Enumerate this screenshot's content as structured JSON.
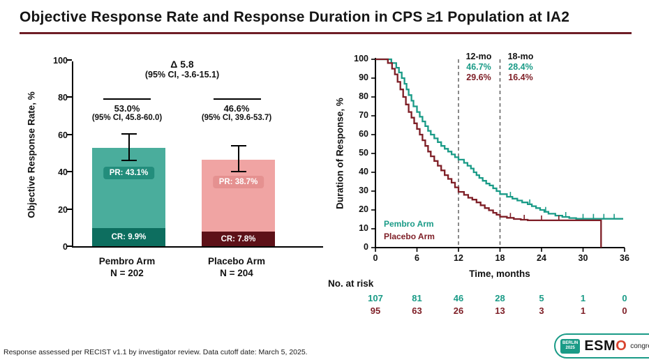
{
  "title": "Objective Response Rate and Response Duration in CPS ≥1 Population at IA2",
  "footer": "Response assessed per RECIST v1.1 by investigator review. Data cutoff date: March 5, 2025.",
  "colors": {
    "pembro": "#1a9b87",
    "pembro_bar": "#4aad9c",
    "pembro_cr": "#0d6e5f",
    "pembro_badge": "#238d7c",
    "placebo": "#7e1e26",
    "placebo_bar": "#f0a4a3",
    "placebo_cr": "#5d1118",
    "placebo_badge": "#e59190",
    "title_rule": "#6e1e26",
    "dash_line": "#4a4a4a"
  },
  "logo": {
    "badge_line1": "BERLIN",
    "badge_line2": "2025",
    "name_prefix": "ESM",
    "name_o": "O",
    "suffix": "congress"
  },
  "chart_data": [
    {
      "type": "bar",
      "ylabel": "Objective Response Rate, %",
      "ylim": [
        0,
        100
      ],
      "yticks": [
        0,
        20,
        40,
        60,
        80,
        100
      ],
      "delta_label": "Δ 5.8",
      "delta_ci": "(95% CI, -3.6-15.1)",
      "categories": [
        "Pembro Arm",
        "Placebo Arm"
      ],
      "bars": [
        {
          "arm": "Pembro Arm",
          "n_label": "N = 202",
          "orr": 53.0,
          "orr_label": "53.0%",
          "ci_label": "(95% CI, 45.8-60.0)",
          "ci_low": 45.8,
          "ci_high": 60.0,
          "cr": 9.9,
          "cr_label": "CR: 9.9%",
          "pr": 43.1,
          "pr_label": "PR: 43.1%"
        },
        {
          "arm": "Placebo Arm",
          "n_label": "N = 204",
          "orr": 46.6,
          "orr_label": "46.6%",
          "ci_label": "(95% CI, 39.6-53.7)",
          "ci_low": 39.6,
          "ci_high": 53.7,
          "cr": 7.8,
          "cr_label": "CR: 7.8%",
          "pr": 38.7,
          "pr_label": "PR: 38.7%"
        }
      ]
    },
    {
      "type": "line",
      "ylabel": "Duration of Response, %",
      "xlabel": "Time, months",
      "ylim": [
        0,
        100
      ],
      "xlim": [
        0,
        36
      ],
      "yticks": [
        0,
        10,
        20,
        30,
        40,
        50,
        60,
        70,
        80,
        90,
        100
      ],
      "xticks": [
        0,
        6,
        12,
        18,
        24,
        30,
        36
      ],
      "grid": false,
      "legend_position": "lower-left",
      "milestones": [
        {
          "label": "12-mo",
          "month": 12,
          "pembro": "46.7%",
          "placebo": "29.6%"
        },
        {
          "label": "18-mo",
          "month": 18,
          "pembro": "28.4%",
          "placebo": "16.4%"
        }
      ],
      "series": [
        {
          "name": "Pembro Arm",
          "color_key": "pembro",
          "points": [
            [
              0,
              100
            ],
            [
              2.3,
              98
            ],
            [
              3,
              95.5
            ],
            [
              3.4,
              93
            ],
            [
              3.8,
              90
            ],
            [
              4.2,
              87
            ],
            [
              4.5,
              84
            ],
            [
              4.8,
              81
            ],
            [
              5.2,
              78
            ],
            [
              5.5,
              75
            ],
            [
              6,
              72
            ],
            [
              6.4,
              69.5
            ],
            [
              6.8,
              67
            ],
            [
              7.2,
              64.5
            ],
            [
              7.6,
              62
            ],
            [
              8,
              60
            ],
            [
              8.5,
              58
            ],
            [
              9,
              56
            ],
            [
              9.5,
              54
            ],
            [
              10,
              52.5
            ],
            [
              10.5,
              51
            ],
            [
              11,
              49.5
            ],
            [
              11.5,
              48
            ],
            [
              12,
              46.7
            ],
            [
              12.8,
              45
            ],
            [
              13.3,
              43.5
            ],
            [
              13.8,
              42
            ],
            [
              14.2,
              40
            ],
            [
              14.6,
              38.5
            ],
            [
              15,
              37
            ],
            [
              15.5,
              35.5
            ],
            [
              16,
              34
            ],
            [
              16.5,
              33
            ],
            [
              17,
              31.5
            ],
            [
              17.5,
              30
            ],
            [
              18,
              28.4
            ],
            [
              19,
              27
            ],
            [
              19.8,
              26
            ],
            [
              20.5,
              25
            ],
            [
              21.2,
              24
            ],
            [
              22,
              23
            ],
            [
              22.6,
              22
            ],
            [
              23.2,
              21
            ],
            [
              23.8,
              20
            ],
            [
              24.4,
              19
            ],
            [
              25,
              18
            ],
            [
              26,
              17
            ],
            [
              27,
              16.3
            ],
            [
              28,
              15.7
            ],
            [
              29,
              15.3
            ],
            [
              35.8,
              15.3
            ]
          ],
          "censors": [
            [
              19.5,
              27
            ],
            [
              22.3,
              23
            ],
            [
              24.6,
              19
            ],
            [
              27.5,
              16.3
            ],
            [
              30,
              15.3
            ],
            [
              31.5,
              15.3
            ],
            [
              33,
              15.3
            ],
            [
              34.5,
              15.3
            ]
          ]
        },
        {
          "name": "Placebo Arm",
          "color_key": "placebo",
          "points": [
            [
              0,
              100
            ],
            [
              1.8,
              98
            ],
            [
              2.4,
              95
            ],
            [
              2.8,
              92
            ],
            [
              3.2,
              88
            ],
            [
              3.6,
              84
            ],
            [
              4,
              80
            ],
            [
              4.4,
              76
            ],
            [
              4.8,
              72
            ],
            [
              5.2,
              69
            ],
            [
              5.6,
              66
            ],
            [
              6,
              63
            ],
            [
              6.4,
              60
            ],
            [
              6.8,
              57
            ],
            [
              7.2,
              54
            ],
            [
              7.6,
              51
            ],
            [
              8,
              48.5
            ],
            [
              8.5,
              46
            ],
            [
              9,
              43.5
            ],
            [
              9.5,
              41
            ],
            [
              10,
              38.5
            ],
            [
              10.5,
              36.5
            ],
            [
              11,
              34.5
            ],
            [
              11.5,
              32
            ],
            [
              12,
              29.6
            ],
            [
              12.8,
              28
            ],
            [
              13.4,
              26.5
            ],
            [
              14,
              25.5
            ],
            [
              14.6,
              24
            ],
            [
              15.2,
              22.5
            ],
            [
              15.8,
              21
            ],
            [
              16.4,
              19.8
            ],
            [
              17,
              18.5
            ],
            [
              17.5,
              17.5
            ],
            [
              18,
              16.4
            ],
            [
              19,
              15.8
            ],
            [
              20,
              15.2
            ],
            [
              21,
              14.8
            ],
            [
              22,
              14.5
            ],
            [
              32.6,
              0
            ]
          ],
          "censors": [
            [
              19.5,
              15.8
            ],
            [
              21.5,
              14.8
            ],
            [
              24,
              14.5
            ],
            [
              26.5,
              14.5
            ]
          ]
        }
      ],
      "no_at_risk": {
        "label": "No. at risk",
        "rows": [
          {
            "name": "Pembro Arm",
            "values": [
              107,
              81,
              46,
              28,
              5,
              1,
              0
            ]
          },
          {
            "name": "Placebo Arm",
            "values": [
              95,
              63,
              26,
              13,
              3,
              1,
              0
            ]
          }
        ]
      }
    }
  ]
}
